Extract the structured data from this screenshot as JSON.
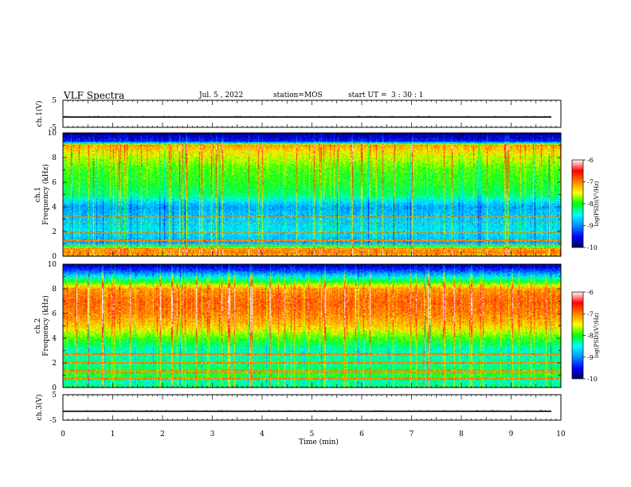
{
  "header": {
    "title": "VLF Spectra",
    "date": "Jul. 5 , 2022",
    "station": "station=MOS",
    "start_ut": "start UT =  3 : 30 : 1"
  },
  "colors": {
    "colormap": [
      "#00005a",
      "#0000ff",
      "#0090ff",
      "#00ffff",
      "#00ff00",
      "#ffff00",
      "#ff8000",
      "#ff0000",
      "#ffffff"
    ],
    "trace": "#000000"
  },
  "chart_data": [
    {
      "type": "line",
      "panel": "ch.1",
      "ylabel": "ch.1(V)",
      "ylim": [
        -5,
        5
      ],
      "yticks": [
        "5",
        "-5"
      ],
      "xlim": [
        0,
        10
      ],
      "trace_level_volts": -1.2
    },
    {
      "type": "heatmap",
      "panel": "ch.1 spectrogram",
      "ylabel_line1": "ch.1",
      "ylabel_line2": "Frequency (kHz)",
      "ylim": [
        0,
        10
      ],
      "yticks": [
        "0",
        "2",
        "4",
        "6",
        "8",
        "10"
      ],
      "xlim": [
        0,
        10
      ],
      "colorbar": {
        "label": "log(PSD)(V²/Hz)",
        "ticks": [
          "-6",
          "-7",
          "-8",
          "-9",
          "-10"
        ],
        "range": [
          -10,
          -6
        ]
      },
      "freq_profile_khz": [
        0,
        0.5,
        1,
        2,
        3,
        4,
        5,
        6,
        7,
        8,
        8.5,
        9,
        9.3,
        10
      ],
      "freq_profile_log_psd": [
        -7.2,
        -7.0,
        -8.9,
        -8.6,
        -8.7,
        -8.9,
        -8.2,
        -8.0,
        -7.9,
        -7.6,
        -7.4,
        -7.1,
        -9.4,
        -9.9
      ],
      "steady_lines_khz": [
        0.3,
        0.6,
        1.0,
        1.3,
        1.9,
        2.8,
        3.2
      ]
    },
    {
      "type": "heatmap",
      "panel": "ch.2 spectrogram",
      "ylabel_line1": "ch.2",
      "ylabel_line2": "Frequency (kHz)",
      "ylim": [
        0,
        10
      ],
      "yticks": [
        "0",
        "2",
        "4",
        "6",
        "8",
        "10"
      ],
      "xlim": [
        0,
        10
      ],
      "colorbar": {
        "label": "log(PSD)(V²/Hz)",
        "ticks": [
          "-6",
          "-7",
          "-8",
          "-9",
          "-10"
        ],
        "range": [
          -10,
          -6
        ]
      },
      "freq_profile_khz": [
        0,
        0.5,
        1,
        2,
        3,
        4,
        5,
        6,
        7,
        8,
        8.5,
        9,
        9.5,
        10
      ],
      "freq_profile_log_psd": [
        -8.2,
        -8.4,
        -8.0,
        -8.3,
        -8.4,
        -7.9,
        -7.3,
        -7.0,
        -6.9,
        -7.1,
        -7.9,
        -8.6,
        -9.3,
        -9.8
      ],
      "steady_lines_khz": [
        0.7,
        1.2,
        1.4,
        2.0,
        2.7
      ]
    },
    {
      "type": "line",
      "panel": "ch.3",
      "ylabel": "ch.3(V)",
      "ylim": [
        -5,
        5
      ],
      "yticks": [
        "5",
        "-5"
      ],
      "xlim": [
        0,
        10
      ],
      "trace_level_volts": -1.5
    }
  ],
  "x_axis": {
    "label": "Time (min)",
    "ticks": [
      "0",
      "1",
      "2",
      "3",
      "4",
      "5",
      "6",
      "7",
      "8",
      "9",
      "10"
    ]
  }
}
